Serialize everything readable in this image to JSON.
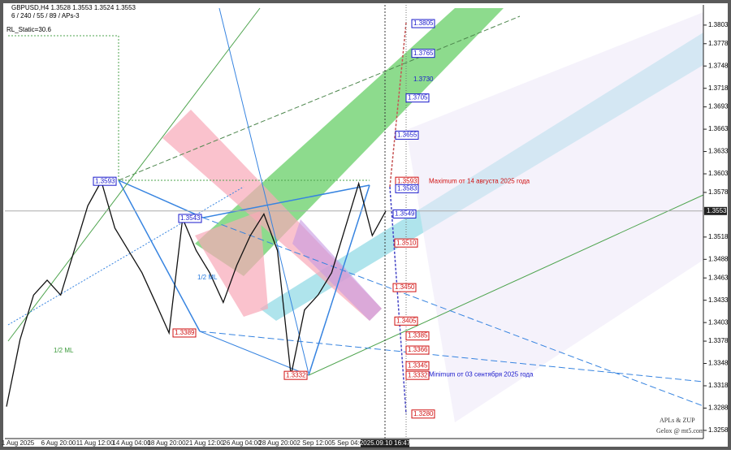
{
  "chart_data": {
    "type": "line",
    "header": {
      "symbol": "GBPUSD,H4  1.3528 1.3553 1.3524 1.3553",
      "params": "6 / 240 / 55 / 89 / APs-3",
      "indicator": "RL_Static=30.6"
    },
    "categories": [
      null,
      null,
      null,
      null,
      null,
      null,
      null,
      null,
      null,
      null,
      null,
      null,
      null,
      null,
      null,
      null,
      null,
      null,
      null,
      null,
      null,
      null,
      null,
      null,
      null,
      null,
      null,
      null,
      null
    ],
    "series": [
      {
        "name": "GBPUSD",
        "color": "#111111",
        "values": [
          1.329,
          1.338,
          1.344,
          1.346,
          1.344,
          1.35,
          1.356,
          1.3593,
          1.353,
          1.35,
          1.347,
          1.343,
          1.3389,
          1.3543,
          1.35,
          1.347,
          1.343,
          1.348,
          1.352,
          1.3549,
          1.35,
          1.3332,
          1.342,
          1.344,
          1.347,
          1.353,
          1.359,
          1.352,
          1.3553
        ]
      }
    ],
    "ylim": [
      1.3247,
      1.3828
    ],
    "yticks": [
      1.3803,
      1.3778,
      1.3748,
      1.3718,
      1.3693,
      1.3663,
      1.3633,
      1.3603,
      1.3578,
      1.3518,
      1.3488,
      1.3463,
      1.3433,
      1.3403,
      1.3378,
      1.3348,
      1.3318,
      1.3288,
      1.3258
    ],
    "current_price": 1.3553,
    "x_labels": [
      "1 Aug 2025",
      "6 Aug 20:00",
      "11 Aug 12:00",
      "14 Aug 04:00",
      "18 Aug 20:00",
      "21 Aug 12:00",
      "26 Aug 04:00",
      "28 Aug 20:00",
      "2 Sep 12:00",
      "5 Sep 04:00",
      "2025.09.10 16:47"
    ],
    "levels": [
      {
        "value": 1.3805,
        "color": "#1a1acc"
      },
      {
        "value": 1.3765,
        "color": "#1a1acc"
      },
      {
        "value": 1.373,
        "label": "1.3730",
        "color": "#1a1acc"
      },
      {
        "value": 1.3705,
        "color": "#1a1acc"
      },
      {
        "value": 1.3655,
        "color": "#1a1acc"
      },
      {
        "value": 1.3593,
        "color": "#d01010"
      },
      {
        "value": 1.3583,
        "color": "#1a1acc"
      },
      {
        "value": 1.3549,
        "color": "#1a1acc"
      },
      {
        "value": 1.351,
        "label": "1.3510",
        "color": "#d01010"
      },
      {
        "value": 1.345,
        "label": "1.3450",
        "color": "#d01010"
      },
      {
        "value": 1.3405,
        "color": "#d01010"
      },
      {
        "value": 1.3385,
        "color": "#d01010"
      },
      {
        "value": 1.3366,
        "color": "#d01010"
      },
      {
        "value": 1.3345,
        "color": "#d01010"
      },
      {
        "value": 1.3332,
        "color": "#d01010"
      },
      {
        "value": 1.328,
        "label": "1.3280",
        "color": "#d01010"
      },
      {
        "value": 1.3593,
        "color": "#1a1acc"
      },
      {
        "value": 1.3543,
        "color": "#1a1acc"
      },
      {
        "value": 1.3389,
        "color": "#d01010"
      },
      {
        "value": 1.3332,
        "color": "#d01010"
      }
    ],
    "annotations": [
      "Maximum от 14 августа 2025 года",
      "Minimum от 03 сентября 2025 года",
      "1/2 ML",
      "1/2 ML",
      "APLs & ZUP",
      "Gelox @ mt5.com"
    ]
  }
}
